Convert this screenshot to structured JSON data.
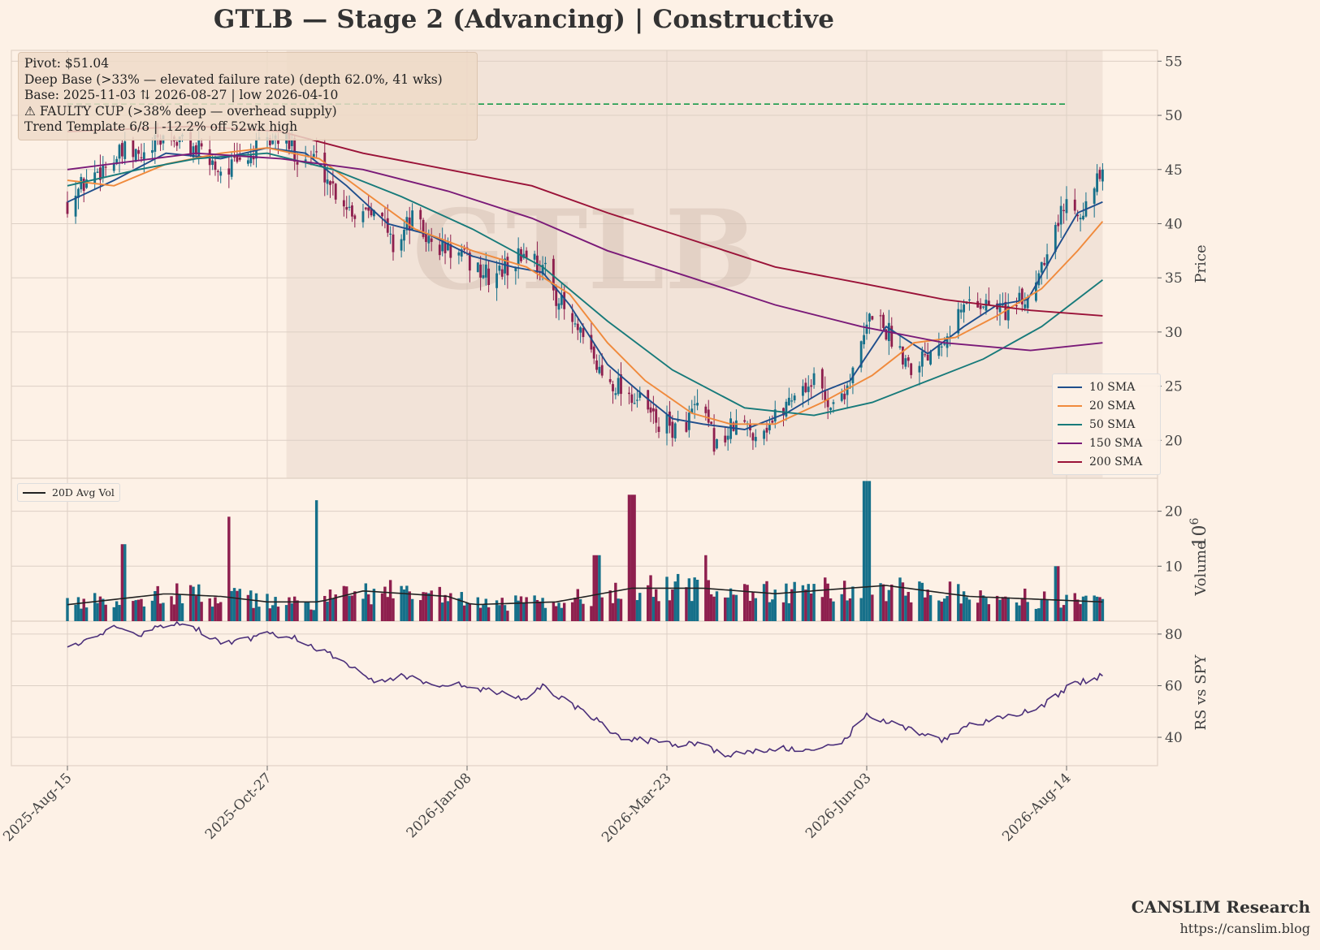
{
  "title": "GTLB  —  Stage 2 (Advancing)  |  Constructive",
  "info_box": {
    "lines": [
      "Pivot: $51.04",
      "Deep Base (>33% — elevated failure rate)  (depth 62.0%, 41 wks)",
      "Base: 2025-11-03 ⇅ 2026-08-27  |  low 2026-04-10",
      "⚠ FAULTY CUP (>38% deep — overhead supply)",
      "Trend Template 6/8  |  -12.2% off 52wk high"
    ]
  },
  "watermark": "GTLB",
  "footer": {
    "brand": "CANSLIM Research",
    "url": "https://canslim.blog"
  },
  "colors": {
    "background": "#fdf1e6",
    "base_shade": "#f0e1d5",
    "candle_up": "#16708a",
    "candle_down": "#8e1f4e",
    "pivot_line": "#1a9a4a",
    "rs_line": "#4b2f7a"
  },
  "chart_data": [
    {
      "type": "candlestick",
      "panel": "price",
      "ylabel": "Price",
      "ylim": [
        16.5,
        56
      ],
      "yticks": [
        20,
        25,
        30,
        35,
        40,
        45,
        50,
        55
      ],
      "x_ticks": [
        "2025-Aug-15",
        "2025-Oct-27",
        "2026-Jan-08",
        "2026-Mar-23",
        "2026-Jun-03",
        "2026-Aug-14"
      ],
      "pivot": 51.04,
      "base_shade": {
        "start": "2025-11-03",
        "end": "2026-08-27"
      },
      "price_path": [
        [
          "2025-08-15",
          42
        ],
        [
          "2025-08-22",
          44
        ],
        [
          "2025-08-29",
          45.5
        ],
        [
          "2025-09-05",
          46.5
        ],
        [
          "2025-09-12",
          46
        ],
        [
          "2025-09-19",
          48
        ],
        [
          "2025-09-26",
          47.5
        ],
        [
          "2025-10-03",
          46.5
        ],
        [
          "2025-10-10",
          45
        ],
        [
          "2025-10-17",
          45.5
        ],
        [
          "2025-10-24",
          47
        ],
        [
          "2025-10-31",
          48
        ],
        [
          "2025-11-07",
          46.5
        ],
        [
          "2025-11-14",
          46
        ],
        [
          "2025-11-21",
          43
        ],
        [
          "2025-11-28",
          41
        ],
        [
          "2025-12-05",
          42
        ],
        [
          "2025-12-12",
          38
        ],
        [
          "2025-12-19",
          40.5
        ],
        [
          "2025-12-26",
          38
        ],
        [
          "2026-01-02",
          37.5
        ],
        [
          "2026-01-09",
          36.5
        ],
        [
          "2026-01-16",
          35
        ],
        [
          "2026-01-23",
          36
        ],
        [
          "2026-01-30",
          37.5
        ],
        [
          "2026-02-06",
          35.5
        ],
        [
          "2026-02-13",
          32
        ],
        [
          "2026-02-20",
          29
        ],
        [
          "2026-02-27",
          26
        ],
        [
          "2026-03-06",
          25
        ],
        [
          "2026-03-13",
          23.5
        ],
        [
          "2026-03-20",
          21.5
        ],
        [
          "2026-03-27",
          21
        ],
        [
          "2026-04-03",
          23
        ],
        [
          "2026-04-10",
          19.5
        ],
        [
          "2026-04-17",
          21.5
        ],
        [
          "2026-04-24",
          20.8
        ],
        [
          "2026-05-01",
          22
        ],
        [
          "2026-05-08",
          24.5
        ],
        [
          "2026-05-15",
          25.5
        ],
        [
          "2026-05-22",
          23
        ],
        [
          "2026-05-29",
          26
        ],
        [
          "2026-06-05",
          32
        ],
        [
          "2026-06-12",
          29.5
        ],
        [
          "2026-06-19",
          27
        ],
        [
          "2026-06-26",
          28.5
        ],
        [
          "2026-07-03",
          30.5
        ],
        [
          "2026-07-10",
          33
        ],
        [
          "2026-07-17",
          32.5
        ],
        [
          "2026-07-24",
          32
        ],
        [
          "2026-07-31",
          33
        ],
        [
          "2026-08-07",
          38
        ],
        [
          "2026-08-14",
          42
        ],
        [
          "2026-08-21",
          41.5
        ],
        [
          "2026-08-27",
          44.8
        ]
      ],
      "moving_averages": [
        {
          "name": "10 SMA",
          "color": "#1f4e8c",
          "points": [
            [
              "2025-08-15",
              42
            ],
            [
              "2025-09-01",
              44
            ],
            [
              "2025-09-20",
              46.5
            ],
            [
              "2025-10-10",
              46
            ],
            [
              "2025-10-27",
              47
            ],
            [
              "2025-11-10",
              46.5
            ],
            [
              "2025-11-25",
              43.5
            ],
            [
              "2025-12-10",
              40
            ],
            [
              "2025-12-25",
              39
            ],
            [
              "2026-01-10",
              37
            ],
            [
              "2026-01-25",
              36
            ],
            [
              "2026-02-05",
              35.5
            ],
            [
              "2026-02-15",
              32.5
            ],
            [
              "2026-03-01",
              27
            ],
            [
              "2026-03-15",
              24
            ],
            [
              "2026-03-25",
              22
            ],
            [
              "2026-04-05",
              21.5
            ],
            [
              "2026-04-20",
              21
            ],
            [
              "2026-05-05",
              22.5
            ],
            [
              "2026-05-18",
              24.5
            ],
            [
              "2026-05-28",
              25.5
            ],
            [
              "2026-06-10",
              30.5
            ],
            [
              "2026-06-25",
              28
            ],
            [
              "2026-07-08",
              30.5
            ],
            [
              "2026-07-20",
              32.5
            ],
            [
              "2026-07-31",
              33
            ],
            [
              "2026-08-10",
              37.5
            ],
            [
              "2026-08-18",
              41
            ],
            [
              "2026-08-27",
              42
            ]
          ]
        },
        {
          "name": "20 SMA",
          "color": "#f08a3c",
          "points": [
            [
              "2025-08-15",
              44
            ],
            [
              "2025-09-01",
              43.5
            ],
            [
              "2025-09-20",
              45.5
            ],
            [
              "2025-10-10",
              46.5
            ],
            [
              "2025-10-27",
              47
            ],
            [
              "2025-11-15",
              46
            ],
            [
              "2025-12-01",
              43
            ],
            [
              "2025-12-20",
              39.5
            ],
            [
              "2026-01-10",
              37.5
            ],
            [
              "2026-01-30",
              36
            ],
            [
              "2026-02-15",
              33.5
            ],
            [
              "2026-03-01",
              29
            ],
            [
              "2026-03-15",
              25.5
            ],
            [
              "2026-04-01",
              22.5
            ],
            [
              "2026-04-15",
              21.5
            ],
            [
              "2026-05-01",
              21.5
            ],
            [
              "2026-05-18",
              23.5
            ],
            [
              "2026-06-05",
              26
            ],
            [
              "2026-06-20",
              29
            ],
            [
              "2026-07-05",
              29.5
            ],
            [
              "2026-07-20",
              31.5
            ],
            [
              "2026-08-05",
              34
            ],
            [
              "2026-08-18",
              37.5
            ],
            [
              "2026-08-27",
              40.2
            ]
          ]
        },
        {
          "name": "50 SMA",
          "color": "#177a7a",
          "points": [
            [
              "2025-08-15",
              43.5
            ],
            [
              "2025-09-10",
              45
            ],
            [
              "2025-10-01",
              46
            ],
            [
              "2025-10-27",
              46.5
            ],
            [
              "2025-11-20",
              45
            ],
            [
              "2025-12-15",
              42.5
            ],
            [
              "2026-01-10",
              39.5
            ],
            [
              "2026-02-05",
              36
            ],
            [
              "2026-03-01",
              31
            ],
            [
              "2026-03-25",
              26.5
            ],
            [
              "2026-04-20",
              23
            ],
            [
              "2026-05-15",
              22.3
            ],
            [
              "2026-06-05",
              23.5
            ],
            [
              "2026-06-25",
              25.5
            ],
            [
              "2026-07-15",
              27.5
            ],
            [
              "2026-08-05",
              30.5
            ],
            [
              "2026-08-27",
              34.8
            ]
          ]
        },
        {
          "name": "150 SMA",
          "color": "#7a1a78",
          "points": [
            [
              "2025-08-15",
              45
            ],
            [
              "2025-10-01",
              46.5
            ],
            [
              "2025-11-01",
              46
            ],
            [
              "2025-12-01",
              45
            ],
            [
              "2026-01-01",
              43
            ],
            [
              "2026-02-01",
              40.5
            ],
            [
              "2026-03-01",
              37.5
            ],
            [
              "2026-04-01",
              35
            ],
            [
              "2026-05-01",
              32.5
            ],
            [
              "2026-06-01",
              30.5
            ],
            [
              "2026-07-01",
              29
            ],
            [
              "2026-08-01",
              28.3
            ],
            [
              "2026-08-27",
              29
            ]
          ]
        },
        {
          "name": "200 SMA",
          "color": "#9a1238",
          "points": [
            [
              "2025-08-15",
              48.5
            ],
            [
              "2025-10-01",
              49
            ],
            [
              "2025-11-01",
              48.5
            ],
            [
              "2025-12-01",
              46.5
            ],
            [
              "2026-01-01",
              45
            ],
            [
              "2026-02-01",
              43.5
            ],
            [
              "2026-03-01",
              41
            ],
            [
              "2026-04-01",
              38.5
            ],
            [
              "2026-05-01",
              36
            ],
            [
              "2026-06-01",
              34.5
            ],
            [
              "2026-07-01",
              33
            ],
            [
              "2026-08-01",
              32
            ],
            [
              "2026-08-27",
              31.5
            ]
          ]
        }
      ]
    },
    {
      "type": "bar",
      "panel": "volume",
      "ylabel": "Volume",
      "y_multiplier_label": "10",
      "y_multiplier_exp": "6",
      "ylim": [
        0,
        26
      ],
      "yticks": [
        10,
        20
      ],
      "avg_series": "20D Avg Vol",
      "spikes": [
        [
          "2025-09-05",
          14
        ],
        [
          "2025-10-12",
          19
        ],
        [
          "2025-11-15",
          22
        ],
        [
          "2026-02-25",
          12
        ],
        [
          "2026-03-10",
          23
        ],
        [
          "2026-04-05",
          12
        ],
        [
          "2026-06-03",
          25.5
        ],
        [
          "2026-08-10",
          10
        ]
      ],
      "avg_vol_path": [
        [
          "2025-08-15",
          3
        ],
        [
          "2025-09-20",
          5
        ],
        [
          "2025-10-10",
          4.5
        ],
        [
          "2025-10-27",
          3.5
        ],
        [
          "2025-11-15",
          3.5
        ],
        [
          "2025-12-01",
          5.5
        ],
        [
          "2026-01-01",
          4.5
        ],
        [
          "2026-01-10",
          3
        ],
        [
          "2026-02-10",
          3.5
        ],
        [
          "2026-03-10",
          6
        ],
        [
          "2026-04-05",
          6
        ],
        [
          "2026-05-01",
          5
        ],
        [
          "2026-06-10",
          6.5
        ],
        [
          "2026-07-10",
          4.5
        ],
        [
          "2026-08-27",
          3.5
        ]
      ]
    },
    {
      "type": "line",
      "panel": "rs",
      "ylabel": "RS vs SPY",
      "ylim": [
        29,
        85
      ],
      "yticks": [
        40,
        60,
        80
      ],
      "points": [
        [
          "2025-08-15",
          76
        ],
        [
          "2025-08-25",
          78
        ],
        [
          "2025-09-01",
          83
        ],
        [
          "2025-09-10",
          79
        ],
        [
          "2025-09-20",
          84
        ],
        [
          "2025-09-30",
          83
        ],
        [
          "2025-10-10",
          76
        ],
        [
          "2025-10-20",
          78
        ],
        [
          "2025-10-27",
          80
        ],
        [
          "2025-11-05",
          79
        ],
        [
          "2025-11-15",
          74
        ],
        [
          "2025-11-25",
          69
        ],
        [
          "2025-12-05",
          61
        ],
        [
          "2025-12-15",
          64
        ],
        [
          "2025-12-25",
          61
        ],
        [
          "2026-01-08",
          60
        ],
        [
          "2026-01-20",
          57
        ],
        [
          "2026-01-30",
          55
        ],
        [
          "2026-02-05",
          60
        ],
        [
          "2026-02-15",
          53
        ],
        [
          "2026-02-25",
          47
        ],
        [
          "2026-03-05",
          40
        ],
        [
          "2026-03-15",
          39
        ],
        [
          "2026-03-25",
          37
        ],
        [
          "2026-04-05",
          38
        ],
        [
          "2026-04-12",
          33
        ],
        [
          "2026-04-22",
          34
        ],
        [
          "2026-05-05",
          36
        ],
        [
          "2026-05-15",
          34
        ],
        [
          "2026-05-25",
          38
        ],
        [
          "2026-06-03",
          49
        ],
        [
          "2026-06-15",
          44
        ],
        [
          "2026-06-30",
          39
        ],
        [
          "2026-07-10",
          45
        ],
        [
          "2026-07-25",
          48
        ],
        [
          "2026-08-05",
          52
        ],
        [
          "2026-08-15",
          60
        ],
        [
          "2026-08-27",
          64
        ]
      ]
    }
  ],
  "legend_sma": [
    "10 SMA",
    "20 SMA",
    "50 SMA",
    "150 SMA",
    "200 SMA"
  ],
  "legend_sma_colors": [
    "#1f4e8c",
    "#f08a3c",
    "#177a7a",
    "#7a1a78",
    "#9a1238"
  ],
  "legend_vol": "20D Avg Vol"
}
